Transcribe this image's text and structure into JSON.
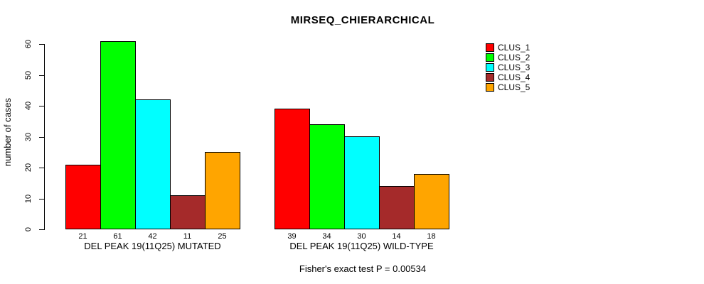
{
  "title": "MIRSEQ_CHIERARCHICAL",
  "y_axis": {
    "label": "number of cases",
    "ticks": [
      0,
      10,
      20,
      30,
      40,
      50,
      60
    ]
  },
  "footer": "Fisher's exact test P = 0.00534",
  "legend": {
    "items": [
      {
        "label": "CLUS_1",
        "color": "#FF0000"
      },
      {
        "label": "CLUS_2",
        "color": "#00FF00"
      },
      {
        "label": "CLUS_3",
        "color": "#00FFFF"
      },
      {
        "label": "CLUS_4",
        "color": "#A52A2A"
      },
      {
        "label": "CLUS_5",
        "color": "#FFA500"
      }
    ]
  },
  "chart_data": {
    "type": "bar",
    "title": "MIRSEQ_CHIERARCHICAL",
    "xlabel": "",
    "ylabel": "number of cases",
    "ylim": [
      0,
      60
    ],
    "yticks": [
      0,
      10,
      20,
      30,
      40,
      50,
      60
    ],
    "grid": false,
    "legend_position": "top-right",
    "series_names": [
      "CLUS_1",
      "CLUS_2",
      "CLUS_3",
      "CLUS_4",
      "CLUS_5"
    ],
    "series_colors": [
      "#FF0000",
      "#00FF00",
      "#00FFFF",
      "#A52A2A",
      "#FFA500"
    ],
    "groups": [
      {
        "label": "DEL PEAK 19(11Q25) MUTATED",
        "values": [
          21,
          61,
          42,
          11,
          25
        ]
      },
      {
        "label": "DEL PEAK 19(11Q25) WILD-TYPE",
        "values": [
          39,
          34,
          30,
          14,
          18
        ]
      }
    ],
    "annotation": "Fisher's exact test P = 0.00534"
  }
}
